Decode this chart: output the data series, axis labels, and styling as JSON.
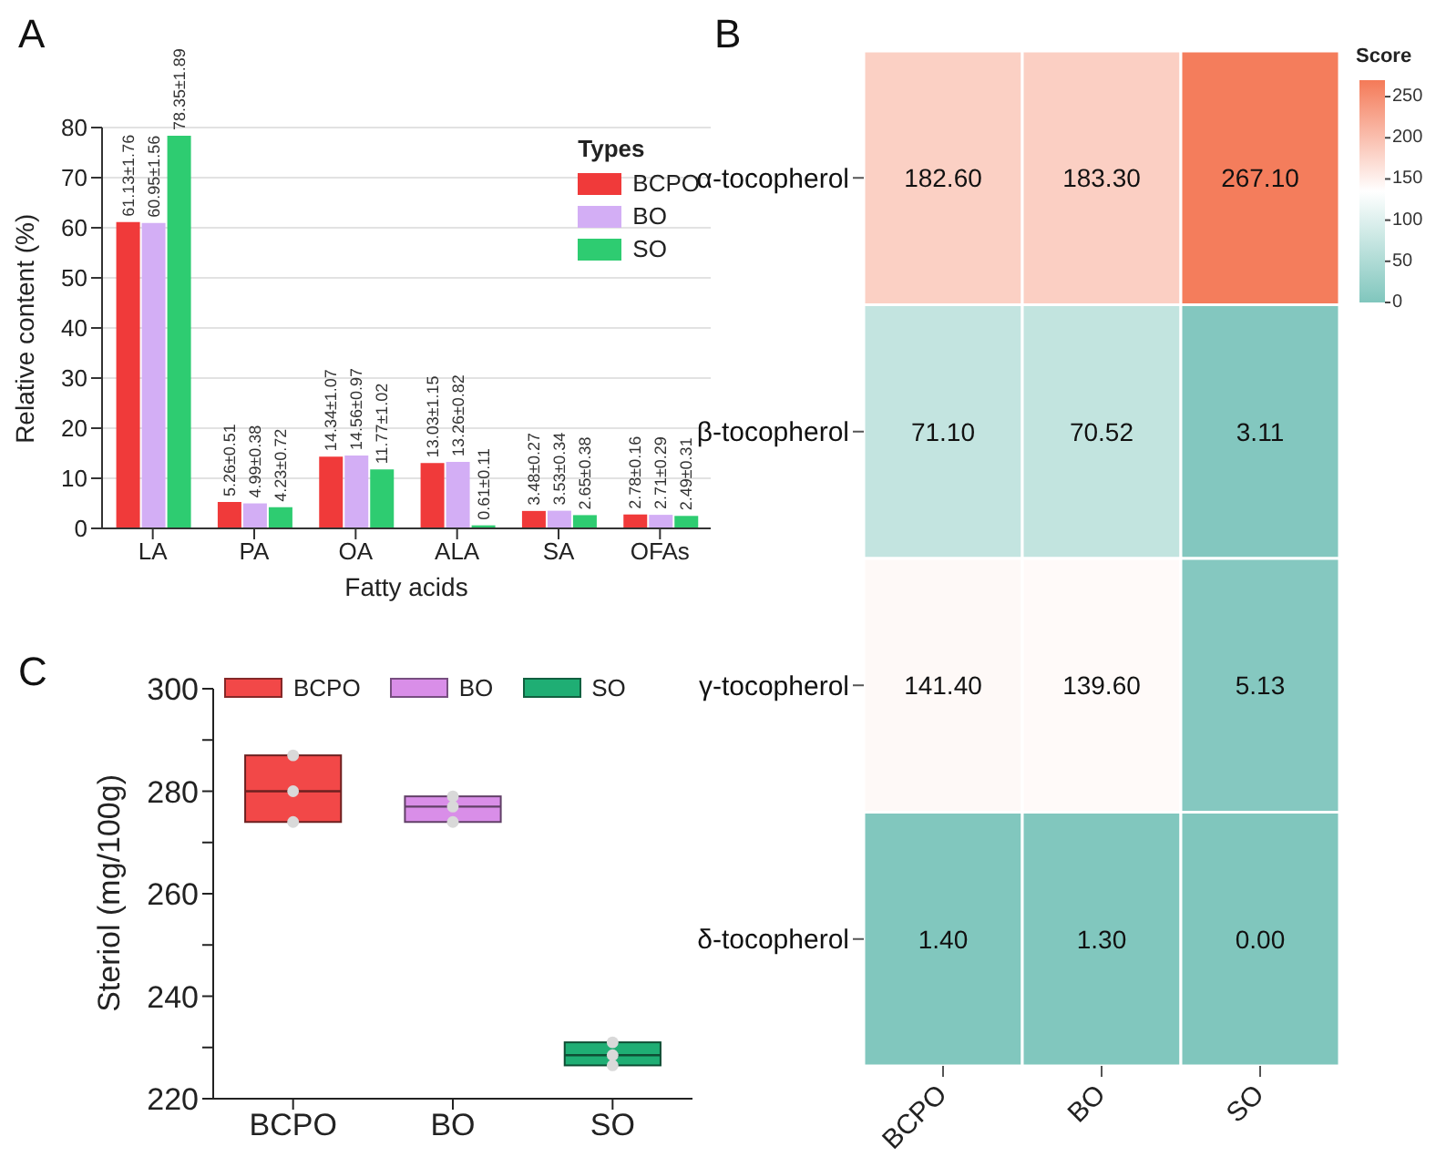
{
  "chart_data": [
    {
      "type": "bar",
      "title": "A",
      "xlabel": "Fatty acids",
      "ylabel": "Relative content (%)",
      "legend_title": "Types",
      "categories": [
        "LA",
        "PA",
        "OA",
        "ALA",
        "SA",
        "OFAs"
      ],
      "series": [
        {
          "name": "BCPO",
          "color": "#f03a3a",
          "values": [
            61.13,
            5.26,
            14.34,
            13.03,
            3.48,
            2.78
          ],
          "value_labels": [
            "61.13±1.76",
            "5.26±0.51",
            "14.34±1.07",
            "13.03±1.15",
            "3.48±0.27",
            "2.78±0.16"
          ]
        },
        {
          "name": "BO",
          "color": "#d3aef5",
          "values": [
            60.95,
            4.99,
            14.56,
            13.26,
            3.53,
            2.71
          ],
          "value_labels": [
            "60.95±1.56",
            "4.99±0.38",
            "14.56±0.97",
            "13.26±0.82",
            "3.53±0.34",
            "2.71±0.29"
          ]
        },
        {
          "name": "SO",
          "color": "#2ecc71",
          "values": [
            78.35,
            4.23,
            11.77,
            0.61,
            2.65,
            2.49
          ],
          "value_labels": [
            "78.35±1.89",
            "4.23±0.72",
            "11.77±1.02",
            "0.61±0.11",
            "2.65±0.38",
            "2.49±0.31"
          ]
        }
      ],
      "ylim": [
        0,
        80
      ],
      "yticks": [
        0,
        10,
        20,
        30,
        40,
        50,
        60,
        70,
        80
      ],
      "grid": "y",
      "legend": "top right"
    },
    {
      "type": "heatmap",
      "title": "B",
      "categories": [
        "BCPO",
        "BO",
        "SO"
      ],
      "y_categories": [
        "α-tocopherol",
        "β-tocopherol",
        "γ-tocopherol",
        "δ-tocopherol"
      ],
      "cells": [
        [
          182.6,
          183.3,
          267.1
        ],
        [
          71.1,
          70.52,
          3.11
        ],
        [
          141.4,
          139.6,
          5.13
        ],
        [
          1.4,
          1.3,
          0
        ]
      ],
      "cell_labels": [
        [
          "182.60",
          "183.30",
          "267.10"
        ],
        [
          "71.10",
          "70.52",
          "3.11"
        ],
        [
          "141.40",
          "139.60",
          "5.13"
        ],
        [
          "1.40",
          "1.30",
          "0.00"
        ]
      ],
      "clabel": "Score",
      "clim": [
        0,
        270
      ],
      "cticks": [
        0,
        50,
        100,
        150,
        200,
        250
      ]
    },
    {
      "type": "box",
      "title": "C",
      "ylabel": "Steriol (mg/100g)",
      "categories": [
        "BCPO",
        "BO",
        "SO"
      ],
      "series": [
        {
          "name": "BCPO",
          "color": "#f24848",
          "boxes": [
            {
              "low": 274,
              "q1": 274,
              "median": 280,
              "q3": 287,
              "high": 287
            },
            null,
            null
          ]
        },
        {
          "name": "BO",
          "color": "#d98ee8",
          "boxes": [
            null,
            {
              "low": 274,
              "q1": 274,
              "median": 277,
              "q3": 279,
              "high": 279
            },
            null
          ]
        },
        {
          "name": "SO",
          "color": "#1fae74",
          "boxes": [
            null,
            null,
            {
              "low": 226.5,
              "q1": 226.5,
              "median": 228.5,
              "q3": 231,
              "high": 231
            }
          ]
        },
        {
          "type": "scatter",
          "color": "#d9d9d9",
          "x": [
            "BCPO",
            "BCPO",
            "BCPO",
            "BO",
            "BO",
            "BO",
            "SO",
            "SO",
            "SO"
          ],
          "values": [
            287,
            280,
            274,
            279,
            277,
            274,
            231,
            228.5,
            226.5
          ]
        }
      ],
      "ylim": [
        220,
        300
      ],
      "yticks": [
        220,
        {
          "value": 230,
          "label": null
        },
        240,
        {
          "value": 250,
          "label": null
        },
        260,
        {
          "value": 270,
          "label": null
        },
        280,
        {
          "value": 290,
          "label": null
        },
        300
      ],
      "legend": "top"
    }
  ]
}
